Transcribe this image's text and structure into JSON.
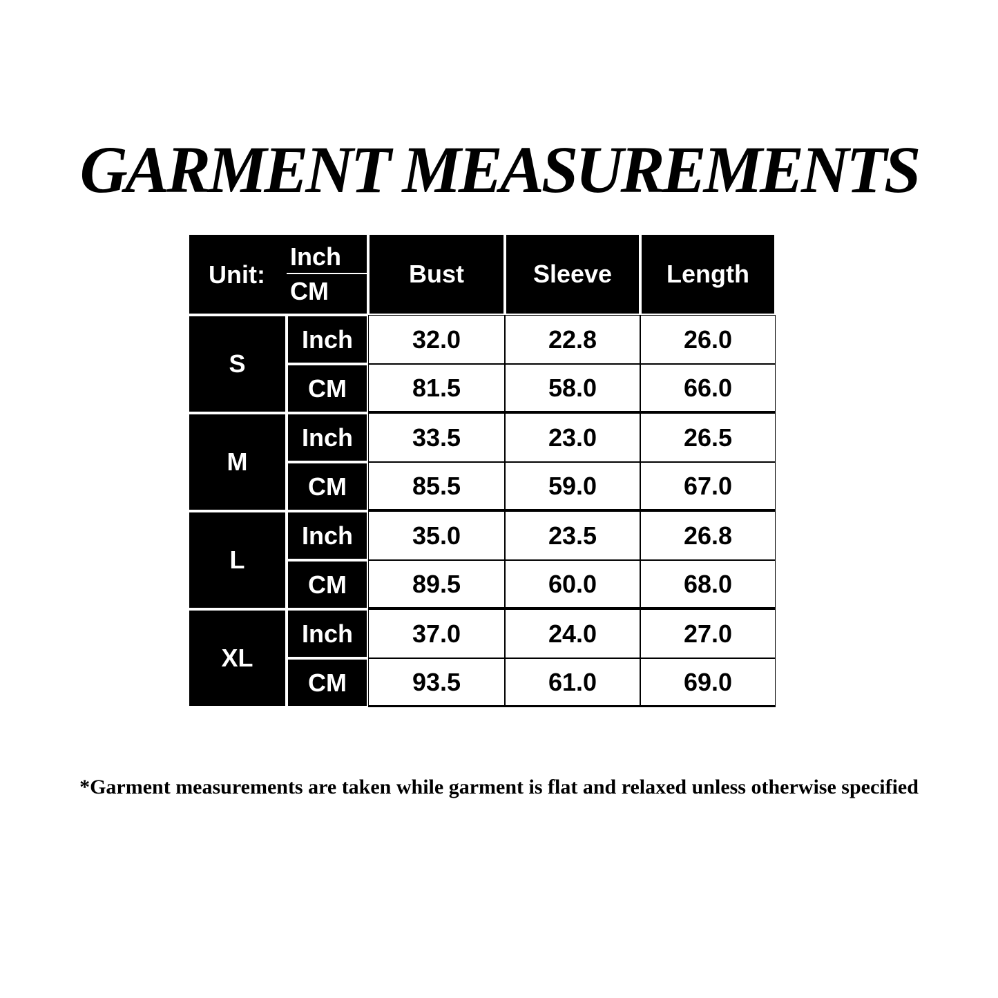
{
  "title": "GARMENT MEASUREMENTS",
  "table": {
    "unit_label": "Unit:",
    "unit_inch": "Inch",
    "unit_cm": "CM",
    "columns": [
      "Bust",
      "Sleeve",
      "Length"
    ],
    "sizes": [
      {
        "size": "S",
        "rows": [
          {
            "unit": "Inch",
            "values": [
              "32.0",
              "22.8",
              "26.0"
            ]
          },
          {
            "unit": "CM",
            "values": [
              "81.5",
              "58.0",
              "66.0"
            ]
          }
        ]
      },
      {
        "size": "M",
        "rows": [
          {
            "unit": "Inch",
            "values": [
              "33.5",
              "23.0",
              "26.5"
            ]
          },
          {
            "unit": "CM",
            "values": [
              "85.5",
              "59.0",
              "67.0"
            ]
          }
        ]
      },
      {
        "size": "L",
        "rows": [
          {
            "unit": "Inch",
            "values": [
              "35.0",
              "23.5",
              "26.8"
            ]
          },
          {
            "unit": "CM",
            "values": [
              "89.5",
              "60.0",
              "68.0"
            ]
          }
        ]
      },
      {
        "size": "XL",
        "rows": [
          {
            "unit": "Inch",
            "values": [
              "37.0",
              "24.0",
              "27.0"
            ]
          },
          {
            "unit": "CM",
            "values": [
              "93.5",
              "61.0",
              "69.0"
            ]
          }
        ]
      }
    ]
  },
  "footnote": "*Garment measurements are taken while garment is flat and relaxed unless otherwise specified"
}
